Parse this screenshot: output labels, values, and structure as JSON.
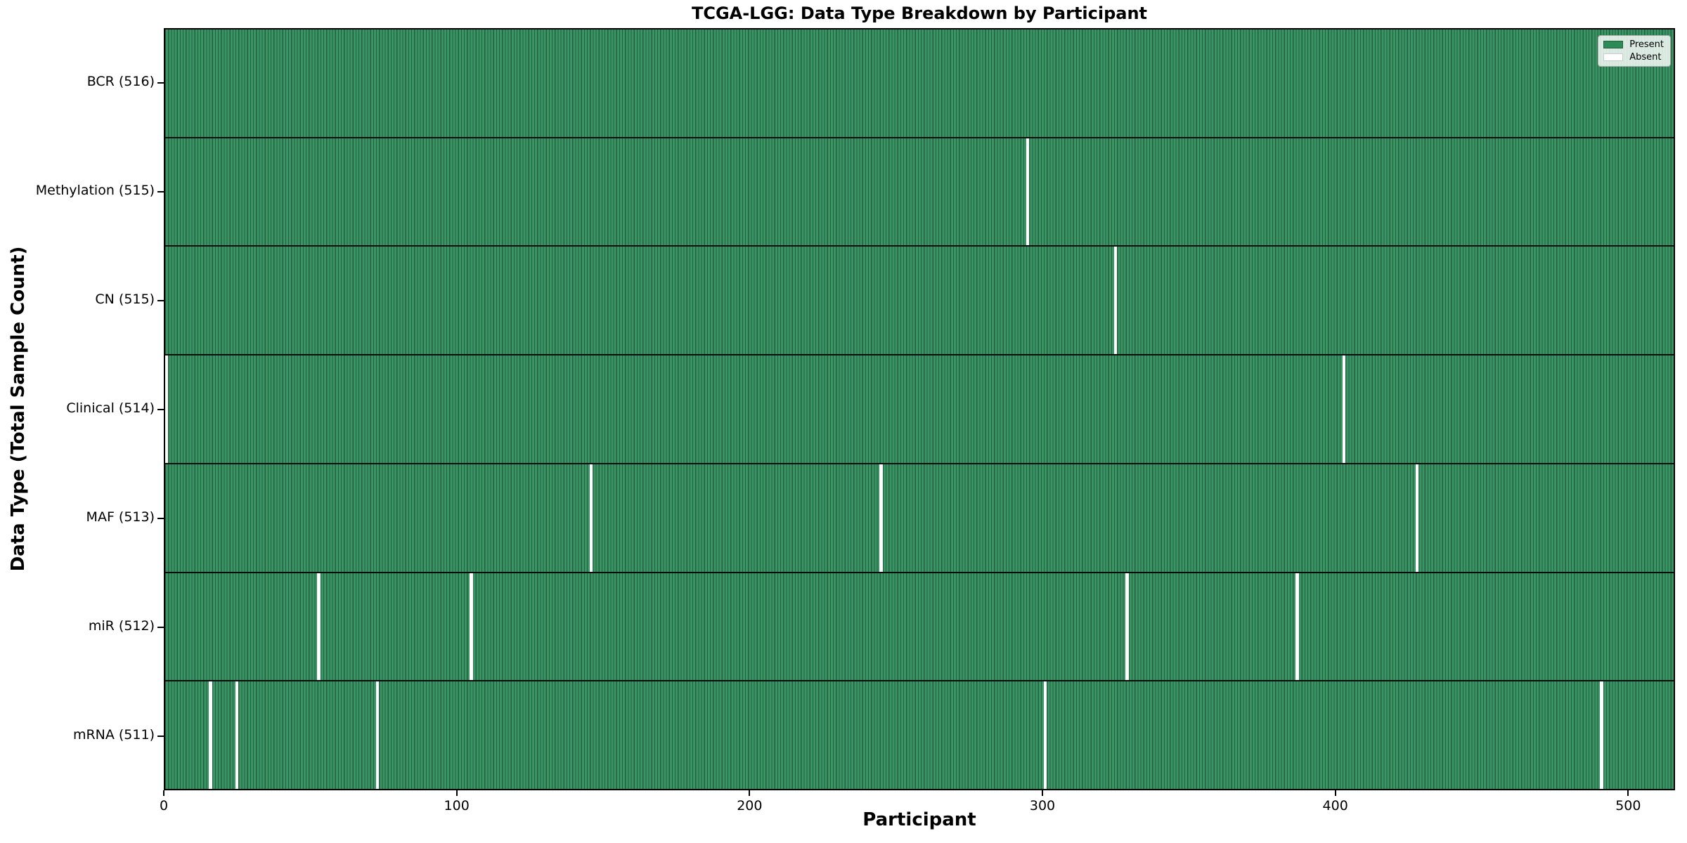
{
  "colors": {
    "present_fill": "#3a9565",
    "present_edge": "#24603f",
    "legend_present": "#2e8b57",
    "absent_white": "#ffffff",
    "axis_black": "#000000"
  },
  "chart_data": {
    "type": "heatmap",
    "title": "TCGA-LGG: Data Type Breakdown by Participant",
    "xlabel": "Participant",
    "ylabel": "Data Type (Total Sample Count)",
    "x_ticks": [
      0,
      100,
      200,
      300,
      400,
      500
    ],
    "x_range": [
      0,
      516
    ],
    "n_participants": 516,
    "grid": false,
    "legend": {
      "position": "upper right",
      "entries": [
        {
          "label": "Present",
          "color": "#2e8b57"
        },
        {
          "label": "Absent",
          "color": "#ffffff"
        }
      ]
    },
    "rows": [
      {
        "label": "BCR (516)",
        "data_type": "BCR",
        "total": 516,
        "absent_participants": []
      },
      {
        "label": "Methylation (515)",
        "data_type": "Methylation",
        "total": 515,
        "absent_participants": [
          294
        ]
      },
      {
        "label": "CN (515)",
        "data_type": "CN",
        "total": 515,
        "absent_participants": [
          324
        ]
      },
      {
        "label": "Clinical (514)",
        "data_type": "Clinical",
        "total": 514,
        "absent_participants": [
          0,
          402
        ]
      },
      {
        "label": "MAF (513)",
        "data_type": "MAF",
        "total": 513,
        "absent_participants": [
          145,
          244,
          427
        ]
      },
      {
        "label": "miR (512)",
        "data_type": "miR",
        "total": 512,
        "absent_participants": [
          52,
          104,
          328,
          386
        ]
      },
      {
        "label": "mRNA (511)",
        "data_type": "mRNA",
        "total": 511,
        "absent_participants": [
          15,
          24,
          72,
          300,
          490
        ]
      }
    ]
  }
}
